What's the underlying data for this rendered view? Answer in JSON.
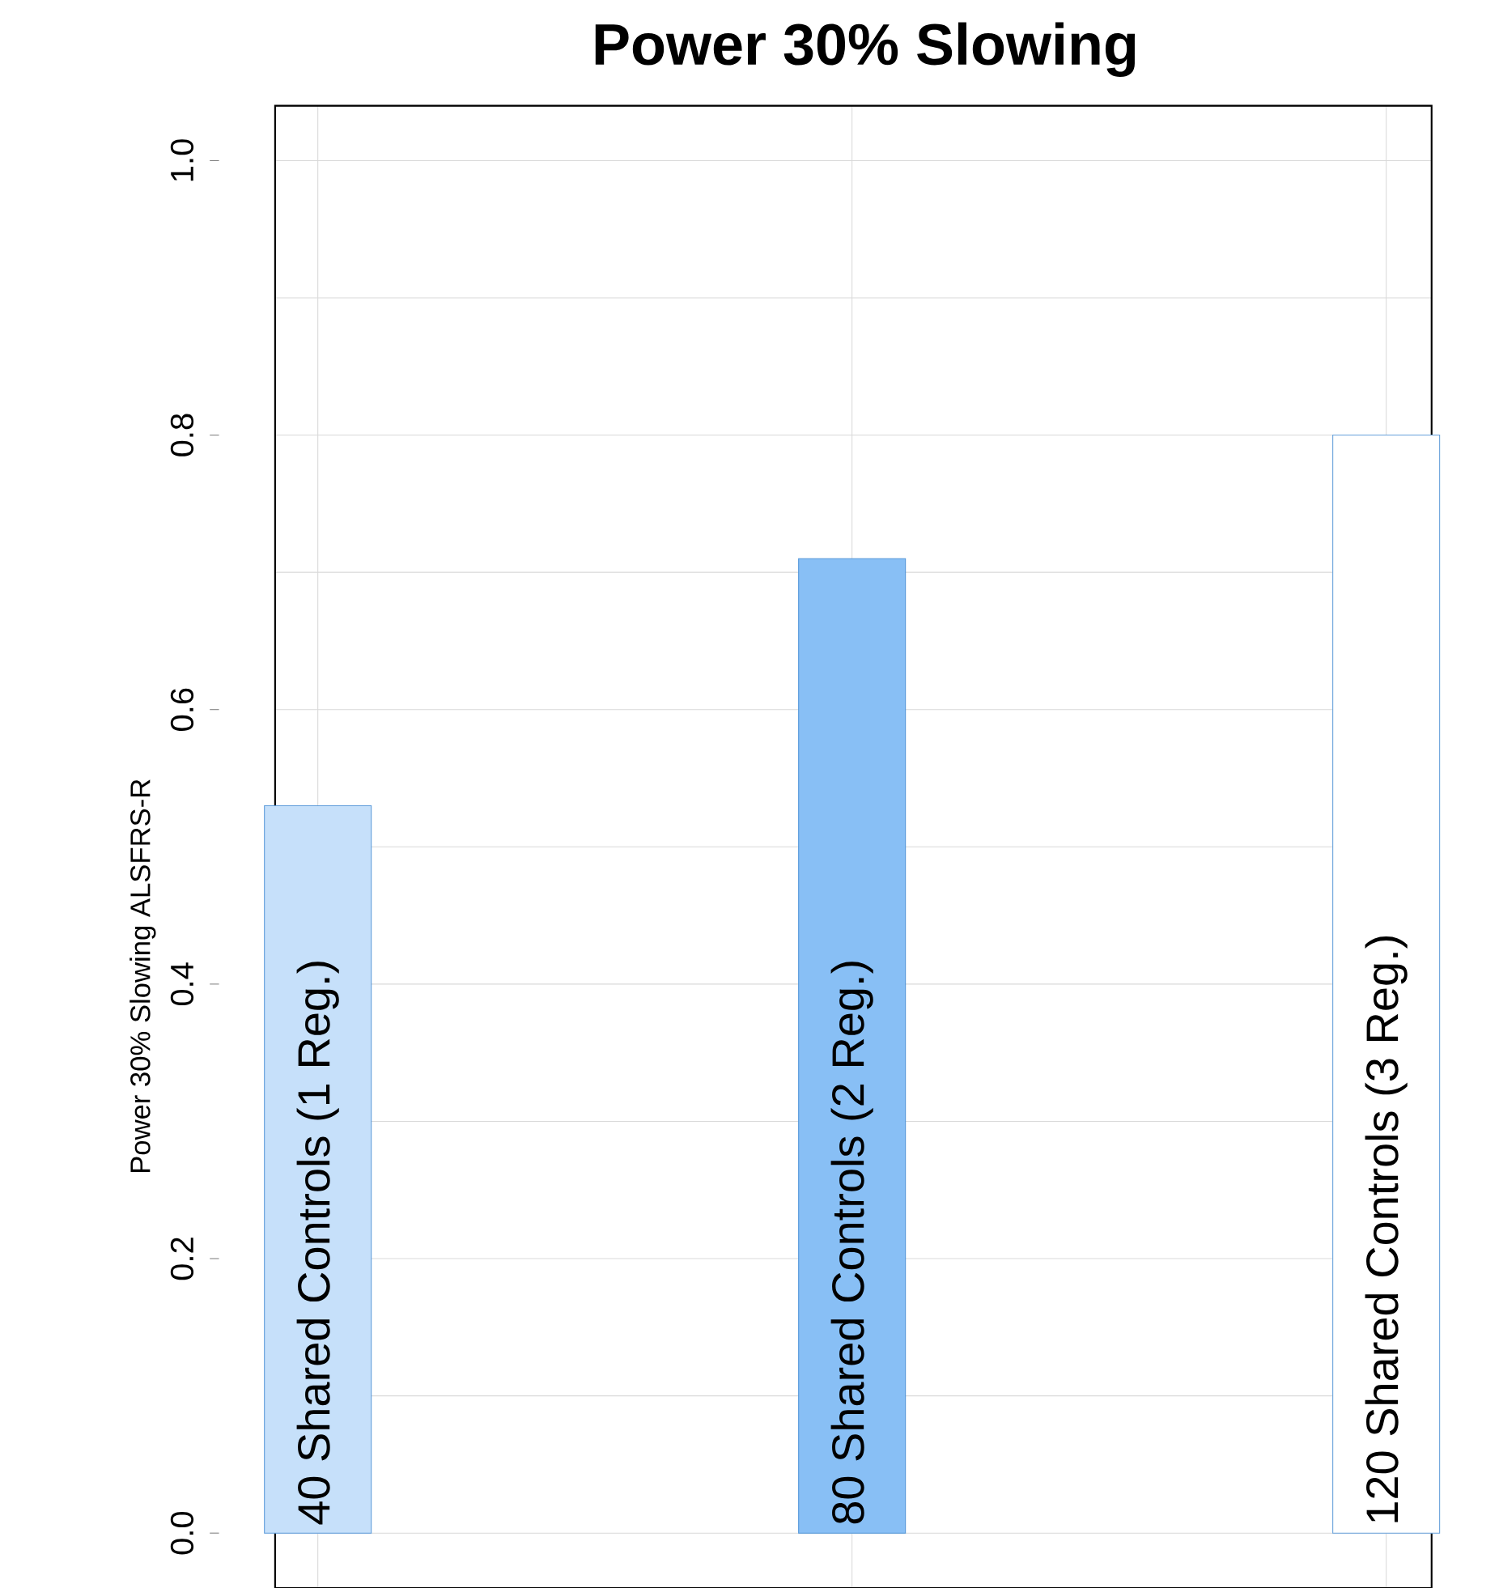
{
  "chart_data": {
    "type": "bar",
    "title": "Power 30% Slowing",
    "ylabel": "Power 30% Slowing ALSFRS-R",
    "categories": [
      "40 Shared Controls (1 Reg.)",
      "80 Shared Controls (2 Reg.)",
      "120 Shared Controls (3 Reg.)"
    ],
    "values": [
      0.53,
      0.71,
      0.8
    ],
    "colors": [
      "#c6e0fa",
      "#88bff5",
      "#ffffff"
    ],
    "ylim": [
      -0.04,
      1.04
    ],
    "yticks": [
      {
        "value": 0,
        "label": "0.0"
      },
      {
        "value": 0.2,
        "label": "0.2"
      },
      {
        "value": 0.4,
        "label": "0.4"
      },
      {
        "value": 0.6,
        "label": "0.6"
      },
      {
        "value": 0.8,
        "label": "0.8"
      },
      {
        "value": 1,
        "label": "1.0"
      }
    ],
    "grid": true
  }
}
